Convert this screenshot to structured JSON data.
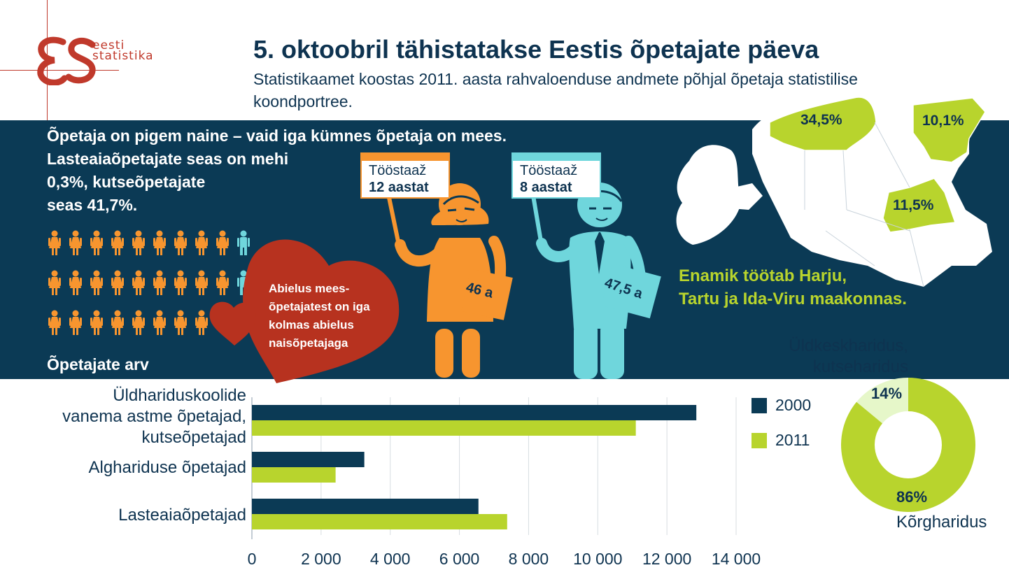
{
  "header": {
    "title": "5. oktoobril tähistatakse Eestis õpetajate päeva",
    "subtitle": "Statistikaamet koostas 2011. aasta rahvaloenduse andmete põhjal õpetaja statistilise koondportree.",
    "logo_lines": [
      "eesti",
      "statistika"
    ]
  },
  "gender": {
    "lines": [
      "Õpetaja on pigem naine – vaid iga kümnes õpetaja on mees.",
      "Lasteaiaõpetajate seas on mehi",
      "0,3%, kutseõpetajate",
      "seas 41,7%."
    ],
    "heart_lines": [
      "Abielus mees-",
      "õpetajatest on iga",
      "kolmas abielus",
      "naisõpetajaga"
    ]
  },
  "female_teacher": {
    "card_label": "Tööstaaž",
    "card_value": "12 aastat",
    "age": "46 a"
  },
  "male_teacher": {
    "card_label": "Tööstaaž",
    "card_value": "8 aastat",
    "age": "47,5 a"
  },
  "map": {
    "caption_lines": [
      "Enamik töötab Harju,",
      "Tartu ja Ida-Viru maakonnas."
    ],
    "labels": {
      "harju": "34,5%",
      "idaviru": "10,1%",
      "tartu": "11,5%"
    }
  },
  "colors": {
    "navy": "#0b3a55",
    "green": "#b8d42d",
    "orange": "#f7952f",
    "cyan": "#6fd6dc",
    "red": "#c0392b",
    "light_green": "#e6f7c9"
  },
  "chart_data": [
    {
      "type": "bar",
      "orientation": "horizontal",
      "title": "Õpetajate arv",
      "categories": [
        [
          "Üldhariduskoolide",
          "vanema astme õpetajad,",
          "kutseõpetajad"
        ],
        [
          "Alghariduse õpetajad"
        ],
        [
          "Lasteaiaõpetajad"
        ]
      ],
      "series": [
        {
          "name": "2000",
          "color": "#0b3a55",
          "values": [
            12850,
            3250,
            6550
          ]
        },
        {
          "name": "2011",
          "color": "#b8d42d",
          "values": [
            11100,
            2420,
            7380
          ]
        }
      ],
      "xlim": [
        0,
        14000
      ],
      "xticks": [
        0,
        2000,
        4000,
        6000,
        8000,
        10000,
        12000,
        14000
      ],
      "xtick_labels": [
        "0",
        "2 000",
        "4 000",
        "6 000",
        "8 000",
        "10 000",
        "12 000",
        "14 000"
      ],
      "grid": true,
      "legend": "right"
    },
    {
      "type": "pie",
      "donut": true,
      "slices": [
        {
          "label_lines": [
            "Üldkeskharidus,",
            "kutseharidus"
          ],
          "value": 14,
          "pct_label": "14%",
          "color": "#e6f7c9"
        },
        {
          "label_lines": [
            "Kõrgharidus"
          ],
          "value": 86,
          "pct_label": "86%",
          "color": "#b8d42d"
        }
      ]
    }
  ]
}
